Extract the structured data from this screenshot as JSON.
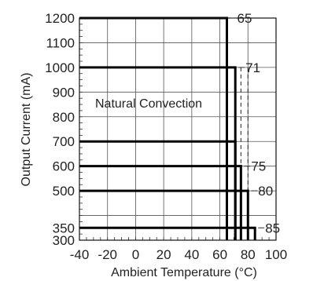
{
  "chart_data": {
    "type": "line",
    "title": "",
    "xlabel": "Ambient Temperature (°C)",
    "ylabel": "Output Current (mA)",
    "xlim": [
      -40,
      100
    ],
    "ylim": [
      300,
      1200
    ],
    "x_ticks": [
      -40,
      -20,
      0,
      20,
      40,
      60,
      80,
      100
    ],
    "y_tick_labels": [
      1200,
      1100,
      1000,
      900,
      800,
      700,
      600,
      500,
      350,
      300
    ],
    "annotation": "Natural Convection",
    "series": [
      {
        "label": "65",
        "current": 1200,
        "temp_limit": 65
      },
      {
        "label": "71",
        "current": 1000,
        "temp_limit": 71
      },
      {
        "label": "",
        "current": 700,
        "temp_limit": 71
      },
      {
        "label": "75",
        "current": 600,
        "temp_limit": 75
      },
      {
        "label": "80",
        "current": 500,
        "temp_limit": 80
      },
      {
        "label": "85",
        "current": 350,
        "temp_limit": 85
      }
    ],
    "dashed_verticals": [
      65,
      71,
      75,
      80
    ],
    "grid": true
  }
}
